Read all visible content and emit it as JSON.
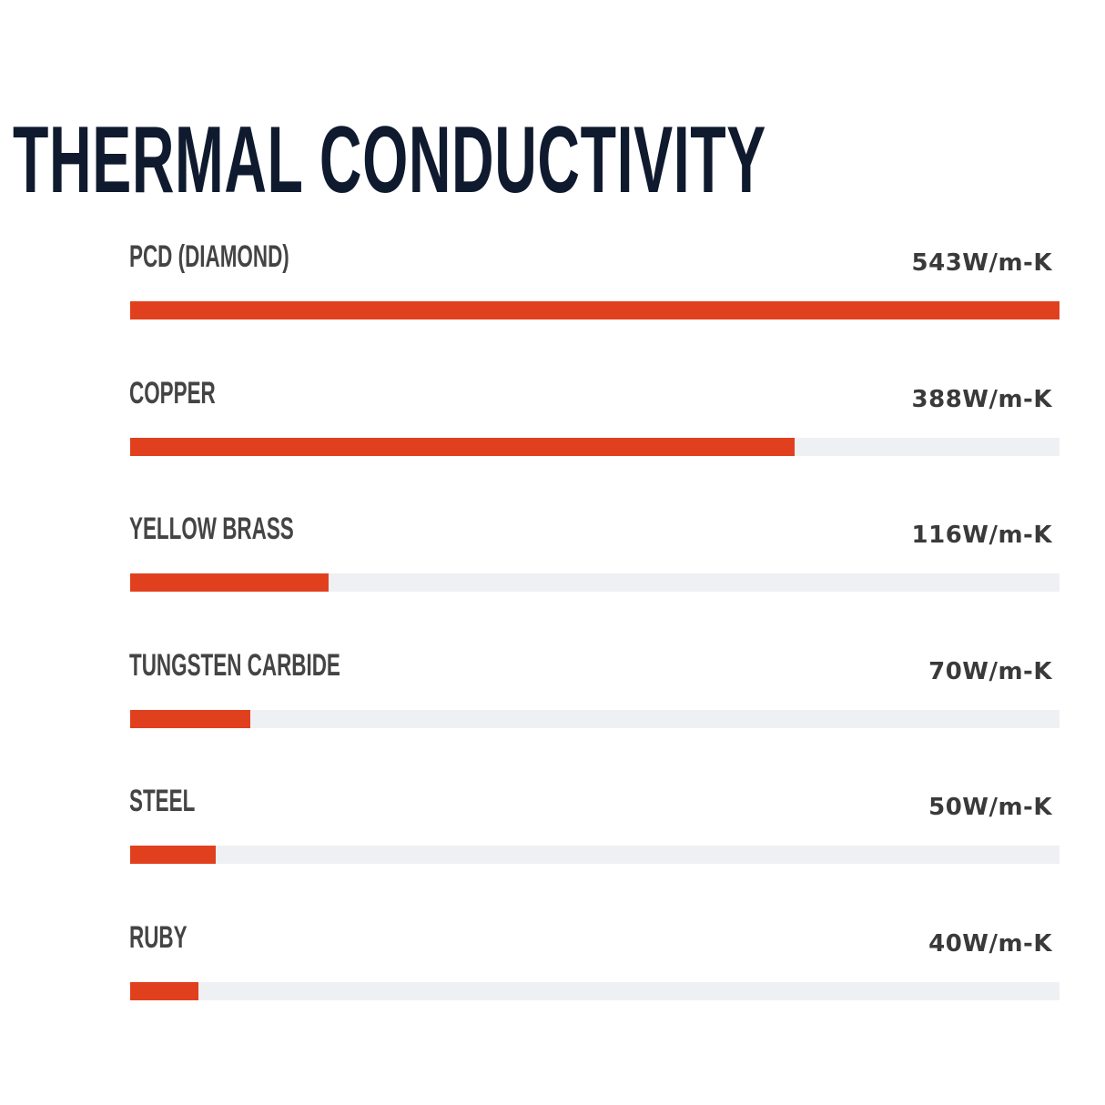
{
  "chart_data": {
    "type": "bar",
    "orientation": "horizontal",
    "title": "THERMAL CONDUCTIVITY",
    "unit": "W/m-K",
    "categories": [
      "PCD (DIAMOND)",
      "COPPER",
      "YELLOW BRASS",
      "TUNGSTEN CARBIDE",
      "STEEL",
      "RUBY"
    ],
    "values": [
      543,
      388,
      116,
      70,
      50,
      40
    ],
    "value_labels": [
      "543W/m-K",
      "388W/m-K",
      "116W/m-K",
      "70W/m-K",
      "50W/m-K",
      "40W/m-K"
    ],
    "xlim": [
      0,
      543
    ],
    "grid": false,
    "colors": {
      "bar": "#e1401f",
      "track": "#eff0f3",
      "title": "#0f1a2e",
      "label": "#444444"
    }
  }
}
